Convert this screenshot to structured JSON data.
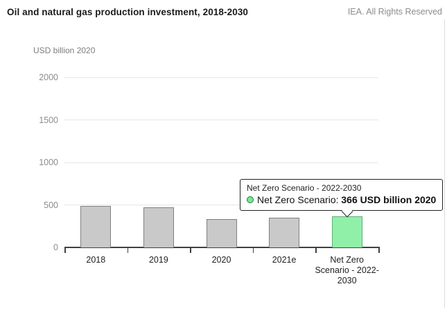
{
  "header": {
    "title": "Oil and natural gas production investment, 2018-2030",
    "rights": "IEA. All Rights Reserved"
  },
  "chart_data": {
    "type": "bar",
    "title": "Oil and natural gas production investment, 2018-2030",
    "ylabel": "USD billion 2020",
    "xlabel": "",
    "categories": [
      "2018",
      "2019",
      "2020",
      "2021e",
      "Net Zero Scenario - 2022-2030"
    ],
    "values": [
      485,
      475,
      330,
      350,
      366
    ],
    "yticks": [
      0,
      500,
      1000,
      1500,
      2000
    ],
    "ylim": [
      0,
      2000
    ],
    "grid": true,
    "legend": "none",
    "highlight_index": 4,
    "series_name": "Net Zero Scenario"
  },
  "tooltip": {
    "header": "Net Zero Scenario - 2022-2030",
    "series_label": "Net Zero Scenario:",
    "value": "366 USD billion 2020"
  },
  "colors": {
    "bar_fill": "#c9c9c9",
    "bar_border": "#7f7f7f",
    "highlight_fill": "#90f0a8",
    "highlight_border": "#5fae79",
    "marker_fill": "#77e896",
    "marker_border": "#1e7a3c",
    "axis": "#404040",
    "gridline": "#e6e6e6"
  }
}
